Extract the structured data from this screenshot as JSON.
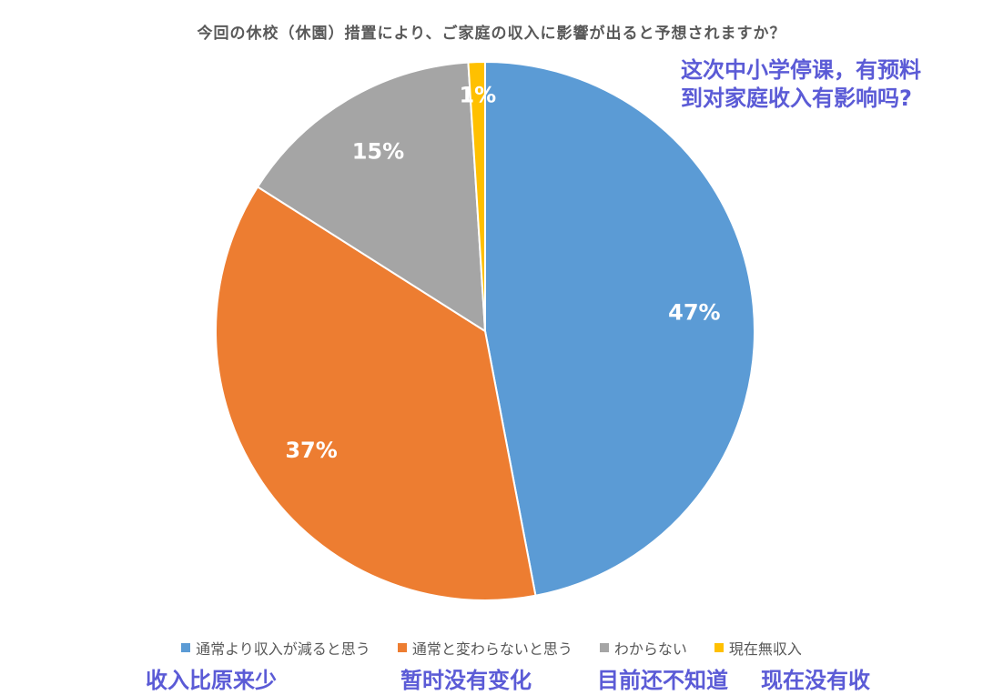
{
  "chart_data": {
    "type": "pie",
    "title": "今回の休校（休園）措置により、ご家庭の収入に影響が出ると予想されますか？",
    "categories": [
      "通常より収入が減ると思う",
      "通常と変わらないと思う",
      "わからない",
      "現在無収入"
    ],
    "values": [
      47,
      37,
      15,
      1
    ],
    "value_labels": [
      "47%",
      "37%",
      "15%",
      "1%"
    ],
    "colors": [
      "#5b9bd5",
      "#ed7d31",
      "#a5a5a5",
      "#ffc000"
    ],
    "legend_position": "bottom",
    "start": "12 o'clock, clockwise"
  },
  "annotation": "这次中小学停课，有预料到对家庭收入有影响吗?",
  "chinese_labels": [
    "收入比原来少",
    "暂时没有变化",
    "目前还不知道",
    "现在没有收"
  ]
}
